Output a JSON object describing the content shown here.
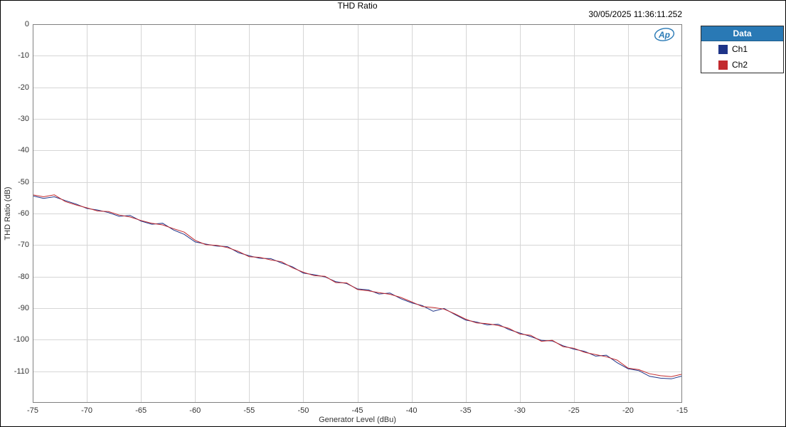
{
  "chart_data": {
    "type": "line",
    "title": "THD Ratio",
    "timestamp": "30/05/2025 11:36:11.252",
    "xlabel": "Generator Level (dBu)",
    "ylabel": "THD Ratio (dB)",
    "xlim": [
      -75,
      -15
    ],
    "ylim": [
      -120,
      0
    ],
    "xticks": [
      -75,
      -70,
      -65,
      -60,
      -55,
      -50,
      -45,
      -40,
      -35,
      -30,
      -25,
      -20,
      -15
    ],
    "yticks": [
      0,
      -10,
      -20,
      -30,
      -40,
      -50,
      -60,
      -70,
      -80,
      -90,
      -100,
      -110
    ],
    "grid": true,
    "legend_title": "Data",
    "legend_position": "top-right-outside",
    "colors": {
      "grid": "#d6d6d6",
      "axis_border": "#808080",
      "legend_header_bg": "#2979B5",
      "logo_blue": "#2979B5"
    },
    "series": [
      {
        "name": "Ch1",
        "color": "#1E3488",
        "x": [
          -75,
          -74,
          -73,
          -72,
          -71,
          -70,
          -69,
          -68,
          -67,
          -66,
          -65,
          -64,
          -63,
          -62,
          -61,
          -60,
          -59,
          -58,
          -57,
          -56,
          -55,
          -54,
          -53,
          -52,
          -51,
          -50,
          -49,
          -48,
          -47,
          -46,
          -45,
          -44,
          -43,
          -42,
          -41,
          -40,
          -39,
          -38,
          -37,
          -36,
          -35,
          -34,
          -33,
          -32,
          -31,
          -30,
          -29,
          -28,
          -27,
          -26,
          -25,
          -24,
          -23,
          -22,
          -21,
          -20,
          -19,
          -18,
          -17,
          -16,
          -15
        ],
        "y": [
          -54.4,
          -55.2,
          -54.7,
          -55.9,
          -57.0,
          -58.4,
          -58.9,
          -59.7,
          -60.9,
          -60.6,
          -62.4,
          -63.4,
          -63.1,
          -65.2,
          -66.6,
          -69.0,
          -69.7,
          -70.3,
          -70.5,
          -72.4,
          -73.4,
          -74.2,
          -74.3,
          -75.7,
          -76.9,
          -78.9,
          -79.4,
          -80.1,
          -81.6,
          -82.2,
          -83.9,
          -84.2,
          -85.5,
          -85.2,
          -87.0,
          -88.3,
          -89.2,
          -91.0,
          -90.1,
          -92.0,
          -93.8,
          -94.4,
          -95.3,
          -95.1,
          -96.8,
          -97.9,
          -99.0,
          -100.2,
          -100.4,
          -101.9,
          -103.0,
          -103.7,
          -105.2,
          -104.9,
          -107.3,
          -109.2,
          -109.8,
          -111.6,
          -112.2,
          -112.4,
          -111.5
        ]
      },
      {
        "name": "Ch2",
        "color": "#C22A2E",
        "x": [
          -75,
          -74,
          -73,
          -72,
          -71,
          -70,
          -69,
          -68,
          -67,
          -66,
          -65,
          -64,
          -63,
          -62,
          -61,
          -60,
          -59,
          -58,
          -57,
          -56,
          -55,
          -54,
          -53,
          -52,
          -51,
          -50,
          -49,
          -48,
          -47,
          -46,
          -45,
          -44,
          -43,
          -42,
          -41,
          -40,
          -39,
          -38,
          -37,
          -36,
          -35,
          -34,
          -33,
          -32,
          -31,
          -30,
          -29,
          -28,
          -27,
          -26,
          -25,
          -24,
          -23,
          -22,
          -21,
          -20,
          -19,
          -18,
          -17,
          -16,
          -15
        ],
        "y": [
          -54.1,
          -54.7,
          -54.1,
          -56.2,
          -57.3,
          -58.2,
          -59.2,
          -59.4,
          -60.5,
          -61.1,
          -62.2,
          -63.1,
          -63.6,
          -64.8,
          -65.9,
          -68.5,
          -69.9,
          -70.1,
          -70.8,
          -72.0,
          -73.7,
          -73.9,
          -74.7,
          -75.3,
          -77.2,
          -78.6,
          -79.7,
          -79.9,
          -81.9,
          -82.0,
          -84.1,
          -84.5,
          -85.1,
          -85.6,
          -86.6,
          -88.0,
          -89.5,
          -89.8,
          -90.3,
          -91.8,
          -93.5,
          -94.7,
          -94.9,
          -95.5,
          -96.4,
          -98.2,
          -98.6,
          -100.5,
          -100.2,
          -102.2,
          -102.7,
          -104.0,
          -104.7,
          -105.4,
          -106.5,
          -109.0,
          -109.5,
          -110.8,
          -111.4,
          -111.7,
          -110.9
        ]
      }
    ],
    "logo_text": "Ap"
  }
}
